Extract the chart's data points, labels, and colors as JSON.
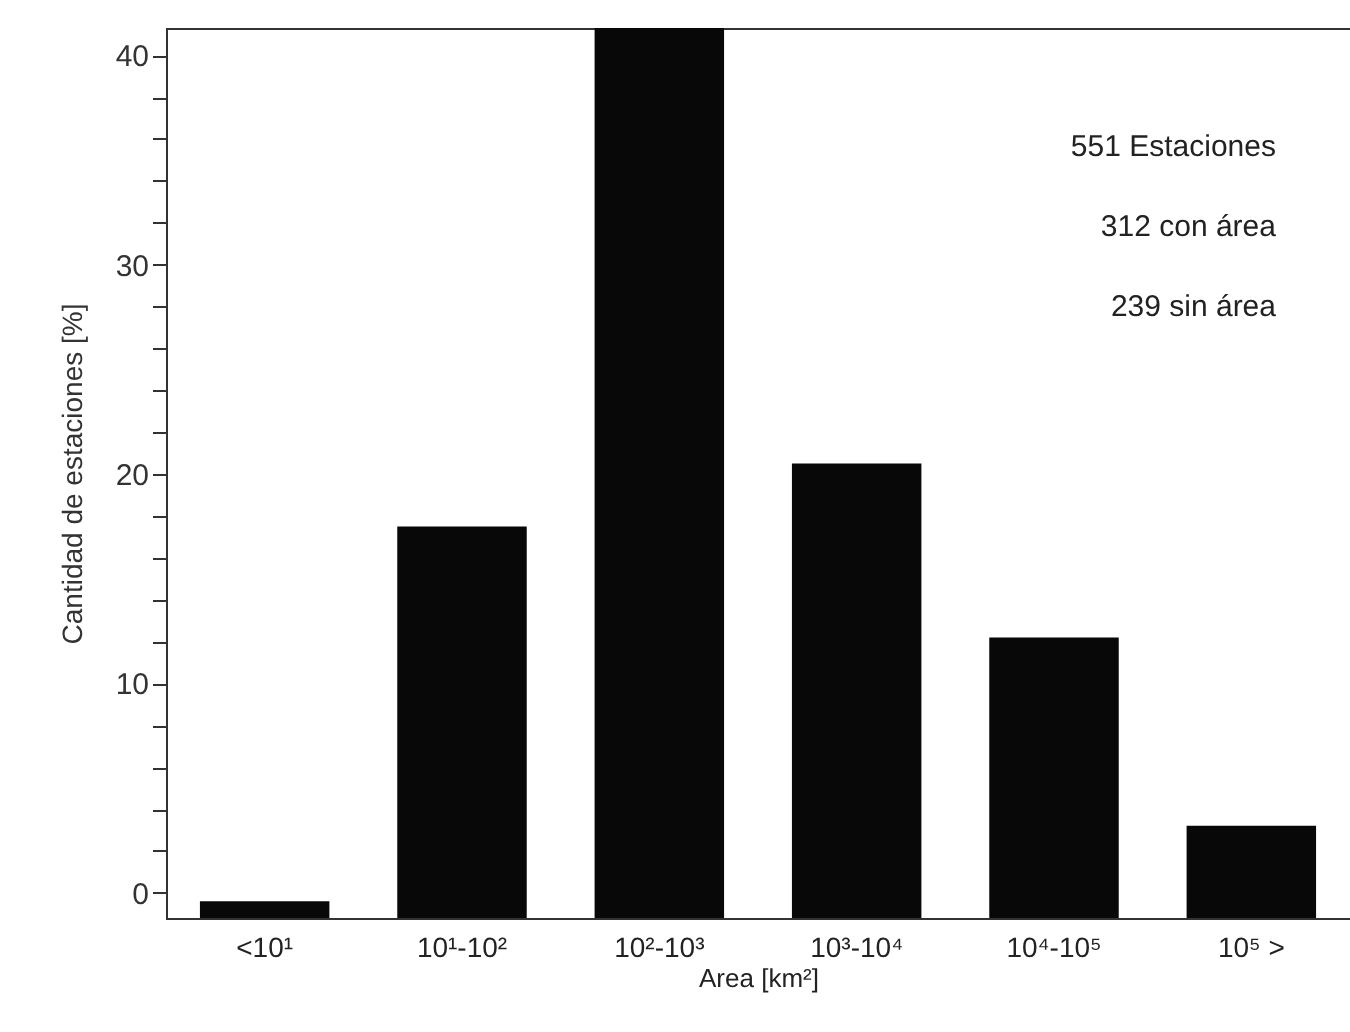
{
  "chart_data": {
    "type": "bar",
    "xlabel": "Area [km²]",
    "ylabel": "Cantidad de estaciones [%]",
    "categories": [
      "<10¹",
      "10¹-10²",
      "10²-10³",
      "10³-10⁴",
      "10⁴-10⁵",
      "10⁵ >"
    ],
    "base": [
      -1.2,
      -1.2,
      -1.2,
      -1.2,
      -1.2,
      -1.2
    ],
    "values": [
      0.8,
      18.7,
      42.5,
      21.7,
      13.4,
      4.4
    ],
    "color": "#080808",
    "ylim": [
      -1.2,
      41.3
    ],
    "yticks": [
      0,
      {
        "value": 2,
        "label": null
      },
      {
        "value": 4,
        "label": null
      },
      {
        "value": 6,
        "label": null
      },
      {
        "value": 8,
        "label": null
      },
      10,
      {
        "value": 12,
        "label": null
      },
      {
        "value": 14,
        "label": null
      },
      {
        "value": 16,
        "label": null
      },
      {
        "value": 18,
        "label": null
      },
      20,
      {
        "value": 22,
        "label": null
      },
      {
        "value": 24,
        "label": null
      },
      {
        "value": 26,
        "label": null
      },
      {
        "value": 28,
        "label": null
      },
      30,
      {
        "value": 32,
        "label": null
      },
      {
        "value": 34,
        "label": null
      },
      {
        "value": 36,
        "label": null
      },
      {
        "value": 38,
        "label": null
      },
      40
    ],
    "annotations": [
      "551 Estaciones",
      "312 con área",
      "239 sin área"
    ]
  }
}
